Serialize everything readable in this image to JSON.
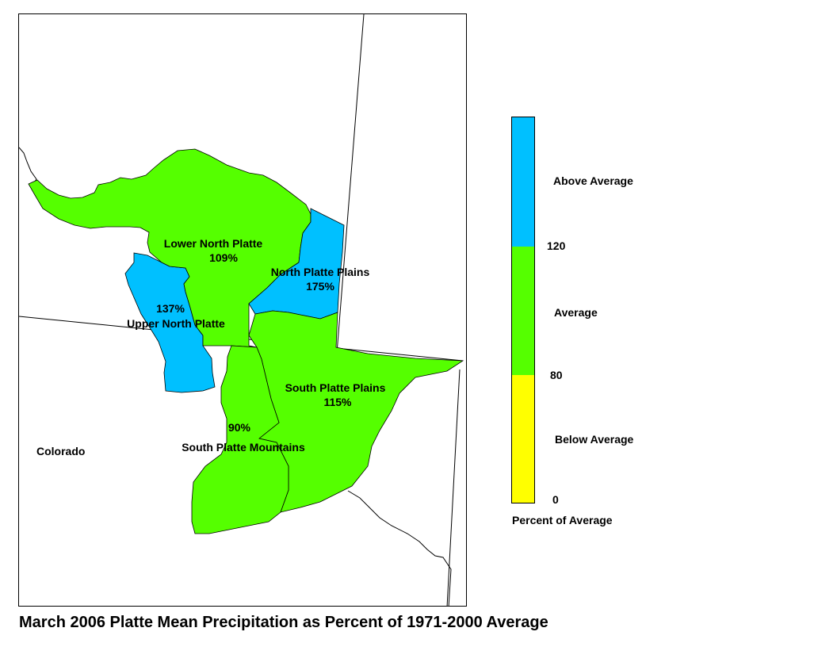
{
  "map": {
    "title": "March 2006 Platte Mean Precipitation as Percent of 1971-2000 Average",
    "state_label": "Colorado",
    "colors": {
      "above": "#00c0ff",
      "average": "#55ff00",
      "below": "#ffff00"
    },
    "basins": [
      {
        "name": "Lower North Platte",
        "percent": "109%",
        "category": "average"
      },
      {
        "name": "North Platte Plains",
        "percent": "175%",
        "category": "above"
      },
      {
        "name": "Upper North Platte",
        "percent": "137%",
        "category": "above"
      },
      {
        "name": "South Platte Plains",
        "percent": "115%",
        "category": "average"
      },
      {
        "name": "South Platte Mountains",
        "percent": "90%",
        "category": "average"
      }
    ]
  },
  "legend": {
    "title": "Percent of Average",
    "classes": [
      {
        "label": "Above Average",
        "color": "#00c0ff"
      },
      {
        "label": "Average",
        "color": "#55ff00"
      },
      {
        "label": "Below Average",
        "color": "#ffff00"
      }
    ],
    "breaks": [
      "120",
      "80",
      "0"
    ]
  }
}
